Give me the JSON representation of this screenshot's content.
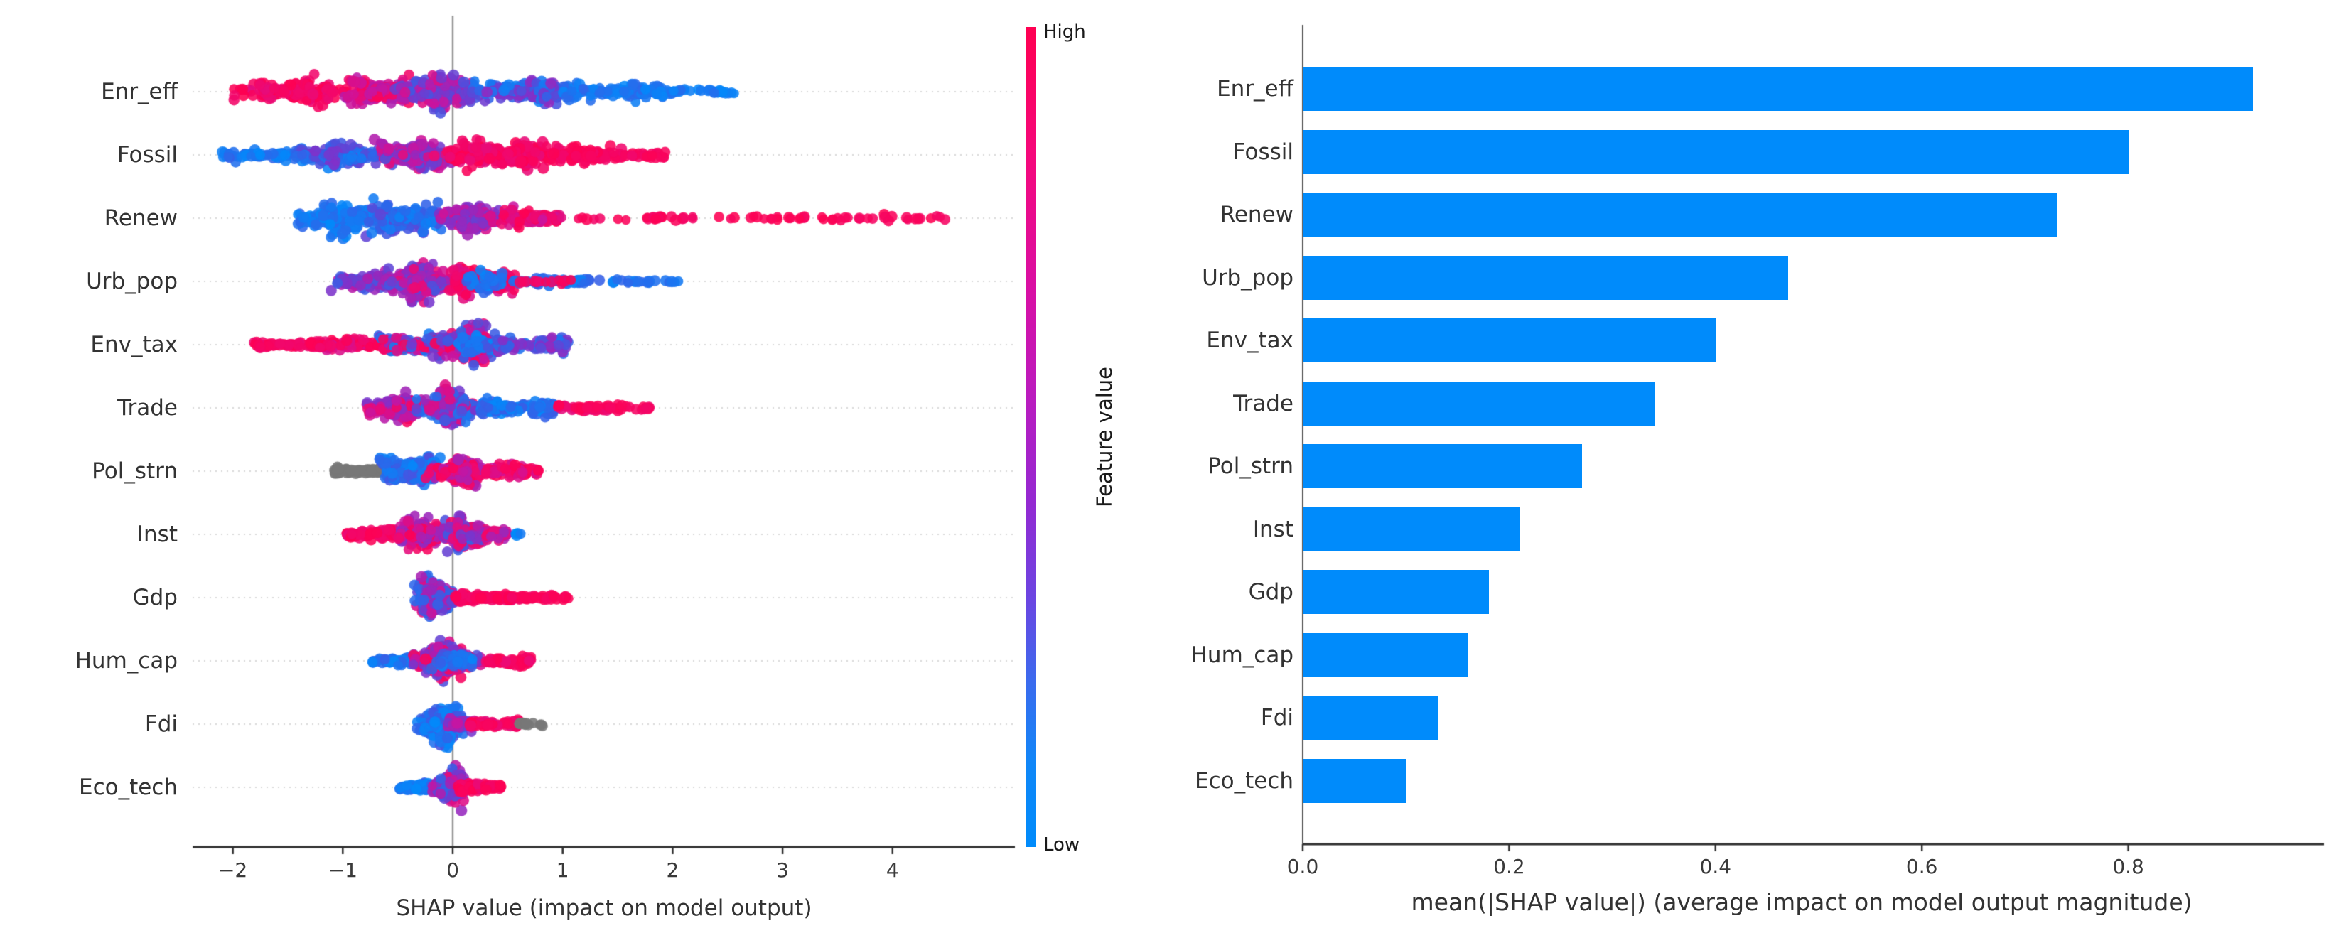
{
  "figure": {
    "background": "#ffffff"
  },
  "colors": {
    "shap_blue": "#008bfb",
    "shap_red": "#ff0051",
    "shap_purple": "#9429d2",
    "missing_gray": "#777777",
    "bar_blue": "#008bfb",
    "axis_line": "#2f2f2f",
    "right_spine": "#555555",
    "zero_line": "#999999",
    "gridline": "#d9d9d9",
    "text": "#333333"
  },
  "colorbar": {
    "label_high": "High",
    "label_low": "Low",
    "title": "Feature value"
  },
  "chart_data": [
    {
      "type": "scatter",
      "variant": "shap-beeswarm-summary",
      "xlabel": "SHAP value (impact on model output)",
      "xlim": [
        -2.45,
        4.75
      ],
      "xticks": [
        -2,
        -1,
        0,
        1,
        2,
        3,
        4
      ],
      "xtick_labels": [
        "−2",
        "−1",
        "0",
        "1",
        "2",
        "3",
        "4"
      ],
      "grid": "dotted-horizontal",
      "legend_position": "colorbar-right",
      "features": [
        {
          "label": "Enr_eff",
          "shap_min": -2.05,
          "shap_max": 2.62,
          "color_trend": "high-negative",
          "clusters": [
            {
              "x": [
                -2.05,
                -0.9
              ],
              "n": 150,
              "th": 26,
              "t": [
                0.78,
                1.0
              ]
            },
            {
              "x": [
                -1.05,
                -0.3
              ],
              "n": 150,
              "th": 30,
              "t": [
                0.6,
                0.95
              ]
            },
            {
              "x": [
                -0.55,
                0.3
              ],
              "n": 190,
              "th": 40,
              "t": [
                0.3,
                0.8
              ]
            },
            {
              "x": [
                0.1,
                1.2
              ],
              "n": 170,
              "th": 26,
              "t": [
                0.05,
                0.55
              ]
            },
            {
              "x": [
                1.0,
                2.05
              ],
              "n": 120,
              "th": 18,
              "t": [
                0.0,
                0.25
              ]
            },
            {
              "x": [
                2.0,
                2.62
              ],
              "n": 25,
              "th": 9,
              "t": [
                0.0,
                0.2
              ]
            }
          ]
        },
        {
          "label": "Fossil",
          "shap_min": -2.1,
          "shap_max": 1.95,
          "color_trend": "high-positive",
          "clusters": [
            {
              "x": [
                -2.1,
                -1.25
              ],
              "n": 70,
              "th": 12,
              "t": [
                0.0,
                0.3
              ]
            },
            {
              "x": [
                -1.45,
                -0.55
              ],
              "n": 160,
              "th": 26,
              "t": [
                0.05,
                0.5
              ]
            },
            {
              "x": [
                -0.75,
                0.1
              ],
              "n": 190,
              "th": 34,
              "t": [
                0.35,
                0.85
              ]
            },
            {
              "x": [
                -0.1,
                1.0
              ],
              "n": 230,
              "th": 32,
              "t": [
                0.8,
                1.0
              ]
            },
            {
              "x": [
                0.9,
                1.6
              ],
              "n": 90,
              "th": 22,
              "t": [
                0.85,
                1.0
              ]
            },
            {
              "x": [
                1.55,
                1.95
              ],
              "n": 25,
              "th": 10,
              "t": [
                0.85,
                1.0
              ]
            }
          ]
        },
        {
          "label": "Renew",
          "shap_min": -1.45,
          "shap_max": 4.55,
          "color_trend": "high-positive",
          "clusters": [
            {
              "x": [
                -1.45,
                -0.55
              ],
              "n": 170,
              "th": 34,
              "t": [
                0.0,
                0.25
              ]
            },
            {
              "x": [
                -0.8,
                -0.05
              ],
              "n": 170,
              "th": 40,
              "t": [
                0.05,
                0.45
              ]
            },
            {
              "x": [
                -0.15,
                0.5
              ],
              "n": 140,
              "th": 30,
              "t": [
                0.4,
                0.8
              ]
            },
            {
              "x": [
                0.4,
                1.05
              ],
              "n": 100,
              "th": 20,
              "t": [
                0.7,
                1.0
              ]
            },
            {
              "x": [
                1.1,
                2.2
              ],
              "n": 25,
              "th": 6,
              "t": [
                0.88,
                1.0
              ]
            },
            {
              "x": [
                2.4,
                4.55
              ],
              "n": 42,
              "th": 6,
              "t": [
                0.9,
                1.0
              ]
            }
          ]
        },
        {
          "label": "Urb_pop",
          "shap_min": -1.15,
          "shap_max": 2.1,
          "color_trend": "mixed",
          "clusters": [
            {
              "x": [
                -1.15,
                -0.5
              ],
              "n": 110,
              "th": 22,
              "t": [
                0.3,
                0.65
              ]
            },
            {
              "x": [
                -0.65,
                0.05
              ],
              "n": 200,
              "th": 38,
              "t": [
                0.3,
                0.85
              ]
            },
            {
              "x": [
                -0.05,
                0.6
              ],
              "n": 190,
              "th": 30,
              "t": [
                0.75,
                1.0
              ]
            },
            {
              "x": [
                0.1,
                0.55
              ],
              "n": 30,
              "th": 24,
              "t": [
                0.0,
                0.3
              ]
            },
            {
              "x": [
                0.55,
                1.3
              ],
              "n": 55,
              "th": 9,
              "t": [
                0.0,
                0.3
              ]
            },
            {
              "x": [
                0.6,
                1.1
              ],
              "n": 12,
              "th": 6,
              "t": [
                0.85,
                1.0
              ]
            },
            {
              "x": [
                1.3,
                2.1
              ],
              "n": 20,
              "th": 6,
              "t": [
                0.0,
                0.3
              ]
            }
          ]
        },
        {
          "label": "Env_tax",
          "shap_min": -1.85,
          "shap_max": 1.05,
          "color_trend": "high-negative",
          "clusters": [
            {
              "x": [
                -1.85,
                -1.2
              ],
              "n": 60,
              "th": 8,
              "t": [
                0.82,
                1.0
              ]
            },
            {
              "x": [
                -1.3,
                -0.55
              ],
              "n": 110,
              "th": 14,
              "t": [
                0.75,
                1.0
              ]
            },
            {
              "x": [
                -0.7,
                -0.15
              ],
              "n": 130,
              "th": 24,
              "t": [
                0.0,
                1.0
              ]
            },
            {
              "x": [
                -0.25,
                0.4
              ],
              "n": 230,
              "th": 42,
              "t": [
                0.3,
                1.0
              ]
            },
            {
              "x": [
                0.0,
                0.5
              ],
              "n": 60,
              "th": 30,
              "t": [
                0.0,
                0.35
              ]
            },
            {
              "x": [
                0.4,
                1.05
              ],
              "n": 80,
              "th": 16,
              "t": [
                0.15,
                0.6
              ]
            }
          ]
        },
        {
          "label": "Trade",
          "shap_min": -0.8,
          "shap_max": 1.8,
          "color_trend": "mixed",
          "clusters": [
            {
              "x": [
                -0.8,
                -0.25
              ],
              "n": 150,
              "th": 30,
              "t": [
                0.45,
                0.95
              ]
            },
            {
              "x": [
                -0.35,
                0.3
              ],
              "n": 200,
              "th": 36,
              "t": [
                0.1,
                0.9
              ]
            },
            {
              "x": [
                0.25,
                0.95
              ],
              "n": 130,
              "th": 17,
              "t": [
                0.0,
                0.3
              ]
            },
            {
              "x": [
                0.95,
                1.45
              ],
              "n": 45,
              "th": 10,
              "t": [
                0.8,
                1.0
              ]
            },
            {
              "x": [
                1.4,
                1.8
              ],
              "n": 22,
              "th": 8,
              "t": [
                0.85,
                1.0
              ]
            }
          ]
        },
        {
          "label": "Pol_strn",
          "shap_min": -1.08,
          "shap_max": 0.78,
          "color_trend": "high-positive",
          "has_missing_gray": true,
          "clusters": [
            {
              "x": [
                -1.08,
                -0.62
              ],
              "n": 70,
              "th": 8,
              "gray": true
            },
            {
              "x": [
                -0.68,
                -0.1
              ],
              "n": 190,
              "th": 34,
              "t": [
                0.0,
                0.4
              ]
            },
            {
              "x": [
                -0.25,
                0.35
              ],
              "n": 170,
              "th": 28,
              "t": [
                0.55,
                1.0
              ]
            },
            {
              "x": [
                0.3,
                0.78
              ],
              "n": 70,
              "th": 14,
              "t": [
                0.7,
                1.0
              ]
            }
          ]
        },
        {
          "label": "Inst",
          "shap_min": -0.97,
          "shap_max": 0.62,
          "color_trend": "mixed",
          "clusters": [
            {
              "x": [
                -0.97,
                -0.45
              ],
              "n": 90,
              "th": 11,
              "t": [
                0.8,
                1.0
              ]
            },
            {
              "x": [
                -0.55,
                0.05
              ],
              "n": 170,
              "th": 30,
              "t": [
                0.5,
                1.0
              ]
            },
            {
              "x": [
                -0.1,
                0.35
              ],
              "n": 170,
              "th": 32,
              "t": [
                0.2,
                0.9
              ]
            },
            {
              "x": [
                0.3,
                0.5
              ],
              "n": 40,
              "th": 14,
              "t": [
                0.55,
                0.95
              ]
            },
            {
              "x": [
                0.55,
                0.62
              ],
              "n": 4,
              "th": 4,
              "t": [
                0.0,
                0.15
              ]
            }
          ]
        },
        {
          "label": "Gdp",
          "shap_min": -0.37,
          "shap_max": 1.06,
          "color_trend": "high-positive",
          "clusters": [
            {
              "x": [
                -0.37,
                0.05
              ],
              "n": 240,
              "th": 42,
              "t": [
                0.15,
                0.8
              ]
            },
            {
              "x": [
                0.02,
                0.55
              ],
              "n": 90,
              "th": 9,
              "t": [
                0.85,
                1.0
              ]
            },
            {
              "x": [
                0.5,
                1.06
              ],
              "n": 50,
              "th": 7,
              "t": [
                0.88,
                1.0
              ]
            }
          ]
        },
        {
          "label": "Hum_cap",
          "shap_min": -0.73,
          "shap_max": 0.72,
          "color_trend": "high-positive",
          "clusters": [
            {
              "x": [
                -0.73,
                -0.32
              ],
              "n": 70,
              "th": 10,
              "t": [
                0.0,
                0.3
              ]
            },
            {
              "x": [
                -0.42,
                0.3
              ],
              "n": 220,
              "th": 36,
              "t": [
                0.35,
                1.0
              ]
            },
            {
              "x": [
                -0.2,
                0.2
              ],
              "n": 40,
              "th": 24,
              "t": [
                0.0,
                0.35
              ]
            },
            {
              "x": [
                0.3,
                0.72
              ],
              "n": 70,
              "th": 10,
              "t": [
                0.82,
                1.0
              ]
            }
          ]
        },
        {
          "label": "Fdi",
          "shap_min": -0.36,
          "shap_max": 0.82,
          "color_trend": "high-positive",
          "has_missing_gray": true,
          "clusters": [
            {
              "x": [
                -0.36,
                0.12
              ],
              "n": 230,
              "th": 40,
              "t": [
                0.0,
                0.35
              ]
            },
            {
              "x": [
                -0.05,
                0.2
              ],
              "n": 50,
              "th": 18,
              "t": [
                0.4,
                0.75
              ]
            },
            {
              "x": [
                0.15,
                0.62
              ],
              "n": 70,
              "th": 9,
              "t": [
                0.8,
                1.0
              ]
            },
            {
              "x": [
                0.6,
                0.82
              ],
              "n": 12,
              "th": 6,
              "gray": true
            }
          ]
        },
        {
          "label": "Eco_tech",
          "shap_min": -0.48,
          "shap_max": 0.44,
          "color_trend": "high-positive",
          "clusters": [
            {
              "x": [
                -0.48,
                -0.15
              ],
              "n": 70,
              "th": 11,
              "t": [
                0.0,
                0.3
              ]
            },
            {
              "x": [
                -0.2,
                0.12
              ],
              "n": 200,
              "th": 44,
              "t": [
                0.25,
                0.85
              ]
            },
            {
              "x": [
                0.05,
                0.3
              ],
              "n": 70,
              "th": 16,
              "t": [
                0.8,
                1.0
              ]
            },
            {
              "x": [
                0.28,
                0.44
              ],
              "n": 25,
              "th": 8,
              "t": [
                0.85,
                1.0
              ]
            }
          ]
        }
      ]
    },
    {
      "type": "bar",
      "orientation": "horizontal",
      "categories": [
        "Enr_eff",
        "Fossil",
        "Renew",
        "Urb_pop",
        "Env_tax",
        "Trade",
        "Pol_strn",
        "Inst",
        "Gdp",
        "Hum_cap",
        "Fdi",
        "Eco_tech"
      ],
      "values": [
        0.92,
        0.8,
        0.73,
        0.47,
        0.4,
        0.34,
        0.27,
        0.21,
        0.18,
        0.16,
        0.13,
        0.1
      ],
      "xlabel": "mean(|SHAP value|) (average impact on model output magnitude)",
      "xlim": [
        0,
        0.99
      ],
      "xticks": [
        0.0,
        0.2,
        0.4,
        0.6,
        0.8
      ],
      "xtick_labels": [
        "0.0",
        "0.2",
        "0.4",
        "0.6",
        "0.8"
      ],
      "grid": "none",
      "bar_color": "#008bfb"
    }
  ]
}
